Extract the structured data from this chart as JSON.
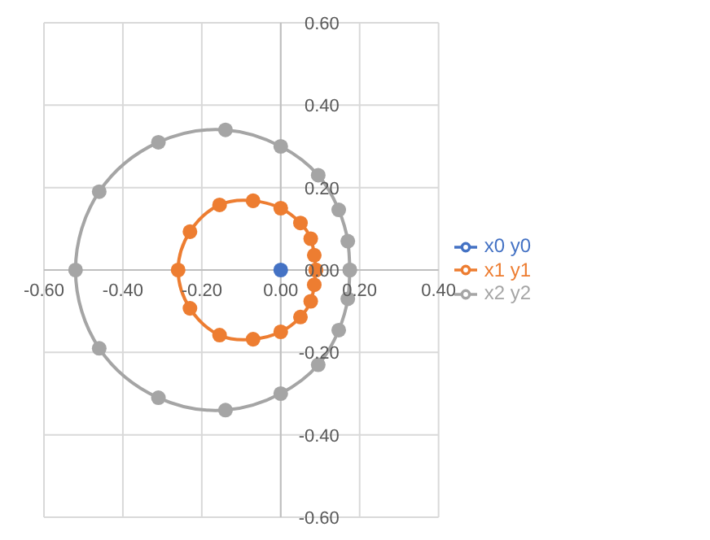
{
  "chart_data": {
    "type": "scatter",
    "marker": "circle",
    "line_style": "solid",
    "grid": true,
    "legend": "right",
    "xlim": [
      -0.6,
      0.4
    ],
    "ylim": [
      -0.6,
      0.6
    ],
    "xticks": [
      {
        "value": -0.6,
        "label": "-0.60"
      },
      {
        "value": -0.4,
        "label": "-0.40"
      },
      {
        "value": -0.2,
        "label": "-0.20"
      },
      {
        "value": 0,
        "label": "0.00"
      },
      {
        "value": 0.2,
        "label": "0.20"
      },
      {
        "value": 0.4,
        "label": "0.40"
      }
    ],
    "yticks": [
      {
        "value": -0.6,
        "label": "-0.60"
      },
      {
        "value": -0.4,
        "label": "-0.40"
      },
      {
        "value": -0.2,
        "label": "-0.20"
      },
      {
        "value": 0,
        "label": "0.00"
      },
      {
        "value": 0.2,
        "label": "0.20"
      },
      {
        "value": 0.4,
        "label": "0.40"
      },
      {
        "value": 0.6,
        "label": "0.60"
      }
    ],
    "series": [
      {
        "name": "x0 y0",
        "color": "#4472c4",
        "x": [
          0
        ],
        "values": [
          0
        ]
      },
      {
        "name": "x1 y1",
        "color": "#ed7d31",
        "x": [
          0.089,
          0.085,
          0.076,
          0.05,
          0,
          -0.07,
          -0.155,
          -0.23,
          -0.26,
          -0.23,
          -0.155,
          -0.07,
          0,
          0.05,
          0.076,
          0.085,
          0.089
        ],
        "values": [
          0,
          0.036,
          0.076,
          0.114,
          0.15,
          0.168,
          0.158,
          0.093,
          0,
          -0.093,
          -0.158,
          -0.168,
          -0.15,
          -0.114,
          -0.076,
          -0.036,
          0
        ]
      },
      {
        "name": "x2 y2",
        "color": "#a5a5a5",
        "x": [
          0.175,
          0.17,
          0.147,
          0.095,
          0,
          -0.14,
          -0.31,
          -0.46,
          -0.52,
          -0.46,
          -0.31,
          -0.14,
          0,
          0.095,
          0.147,
          0.17,
          0.175
        ],
        "values": [
          0,
          0.07,
          0.146,
          0.23,
          0.3,
          0.34,
          0.31,
          0.19,
          0,
          -0.19,
          -0.31,
          -0.34,
          -0.3,
          -0.23,
          -0.146,
          -0.07,
          0
        ]
      }
    ]
  }
}
